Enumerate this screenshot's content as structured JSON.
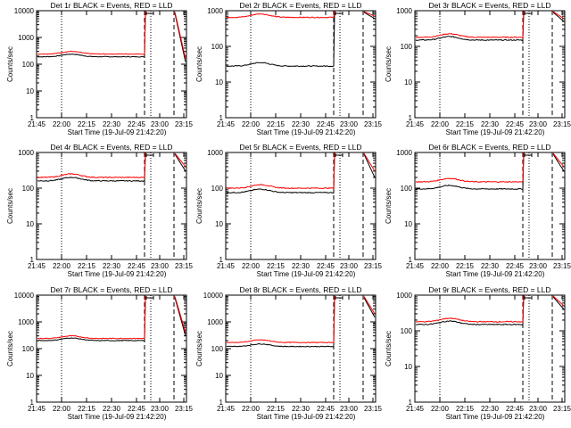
{
  "chart_data": [
    {
      "type": "line",
      "title": "Det 1r BLACK = Events, RED = LLD",
      "xlabel": "Start Time (19-Jul-09 21:42:20)",
      "ylabel": "Counts/sec",
      "yscale": "log",
      "ylim": [
        1,
        10000
      ],
      "xticks": [
        "21:45",
        "22:00",
        "22:15",
        "22:30",
        "22:45",
        "23:00",
        "23:15"
      ],
      "yticks": [
        "1",
        "10",
        "100",
        "1000",
        "10000"
      ],
      "series": [
        {
          "color": "#000000",
          "base": 190,
          "spike": 8000,
          "tail": 120
        },
        {
          "color": "#ff0000",
          "base": 240,
          "spike": 9000,
          "tail": 160
        }
      ]
    },
    {
      "type": "line",
      "title": "Det 2r BLACK = Events, RED = LLD",
      "xlabel": "Start Time (19-Jul-09 21:42:20)",
      "ylabel": "Counts/sec",
      "yscale": "log",
      "ylim": [
        1,
        1000
      ],
      "xticks": [
        "21:45",
        "22:00",
        "22:15",
        "22:30",
        "22:45",
        "23:00",
        "23:15"
      ],
      "yticks": [
        "1",
        "10",
        "100",
        "1000"
      ],
      "series": [
        {
          "color": "#000000",
          "base": 28,
          "spike": 900,
          "tail": 600
        },
        {
          "color": "#ff0000",
          "base": 650,
          "spike": 950,
          "tail": 700
        }
      ]
    },
    {
      "type": "line",
      "title": "Det 3r BLACK = Events, RED = LLD",
      "xlabel": "Start Time (19-Jul-09 21:42:20)",
      "ylabel": "Counts/sec",
      "yscale": "log",
      "ylim": [
        1,
        1000
      ],
      "xticks": [
        "21:45",
        "22:00",
        "22:15",
        "22:30",
        "22:45",
        "23:00",
        "23:15"
      ],
      "yticks": [
        "1",
        "10",
        "100",
        "1000"
      ],
      "series": [
        {
          "color": "#000000",
          "base": 150,
          "spike": 900,
          "tail": 500
        },
        {
          "color": "#ff0000",
          "base": 180,
          "spike": 950,
          "tail": 600
        }
      ]
    },
    {
      "type": "line",
      "title": "Det 4r BLACK = Events, RED = LLD",
      "xlabel": "Start Time (19-Jul-09 21:42:20)",
      "ylabel": "Counts/sec",
      "yscale": "log",
      "ylim": [
        1,
        1000
      ],
      "xticks": [
        "21:45",
        "22:00",
        "22:15",
        "22:30",
        "22:45",
        "23:00",
        "23:15"
      ],
      "yticks": [
        "1",
        "10",
        "100",
        "1000"
      ],
      "series": [
        {
          "color": "#000000",
          "base": 160,
          "spike": 900,
          "tail": 300
        },
        {
          "color": "#ff0000",
          "base": 200,
          "spike": 950,
          "tail": 400
        }
      ]
    },
    {
      "type": "line",
      "title": "Det 5r BLACK = Events, RED = LLD",
      "xlabel": "Start Time (19-Jul-09 21:42:20)",
      "ylabel": "Counts/sec",
      "yscale": "log",
      "ylim": [
        1,
        1000
      ],
      "xticks": [
        "21:45",
        "22:00",
        "22:15",
        "22:30",
        "22:45",
        "23:00",
        "23:15"
      ],
      "yticks": [
        "1",
        "10",
        "100",
        "1000"
      ],
      "series": [
        {
          "color": "#000000",
          "base": 75,
          "spike": 900,
          "tail": 200
        },
        {
          "color": "#ff0000",
          "base": 100,
          "spike": 950,
          "tail": 300
        }
      ]
    },
    {
      "type": "line",
      "title": "Det 6r BLACK = Events, RED = LLD",
      "xlabel": "Start Time (19-Jul-09 21:42:20)",
      "ylabel": "Counts/sec",
      "yscale": "log",
      "ylim": [
        1,
        1000
      ],
      "xticks": [
        "21:45",
        "22:00",
        "22:15",
        "22:30",
        "22:45",
        "23:00",
        "23:15"
      ],
      "yticks": [
        "1",
        "10",
        "100",
        "1000"
      ],
      "series": [
        {
          "color": "#000000",
          "base": 95,
          "spike": 900,
          "tail": 300
        },
        {
          "color": "#ff0000",
          "base": 150,
          "spike": 950,
          "tail": 400
        }
      ]
    },
    {
      "type": "line",
      "title": "Det 7r BLACK = Events, RED = LLD",
      "xlabel": "Start Time (19-Jul-09 21:42:20)",
      "ylabel": "Counts/sec",
      "yscale": "log",
      "ylim": [
        1,
        10000
      ],
      "xticks": [
        "21:45",
        "22:00",
        "22:15",
        "22:30",
        "22:45",
        "23:00",
        "23:15"
      ],
      "yticks": [
        "1",
        "10",
        "100",
        "1000",
        "10000"
      ],
      "series": [
        {
          "color": "#000000",
          "base": 200,
          "spike": 8000,
          "tail": 300
        },
        {
          "color": "#ff0000",
          "base": 240,
          "spike": 9000,
          "tail": 400
        }
      ]
    },
    {
      "type": "line",
      "title": "Det 8r BLACK = Events, RED = LLD",
      "xlabel": "Start Time (19-Jul-09 21:42:20)",
      "ylabel": "Counts/sec",
      "yscale": "log",
      "ylim": [
        1,
        10000
      ],
      "xticks": [
        "21:45",
        "22:00",
        "22:15",
        "22:30",
        "22:45",
        "23:00",
        "23:15"
      ],
      "yticks": [
        "1",
        "10",
        "100",
        "1000",
        "10000"
      ],
      "series": [
        {
          "color": "#000000",
          "base": 120,
          "spike": 8000,
          "tail": 1500
        },
        {
          "color": "#ff0000",
          "base": 170,
          "spike": 9000,
          "tail": 2000
        }
      ]
    },
    {
      "type": "line",
      "title": "Det 9r BLACK = Events, RED = LLD",
      "xlabel": "Start Time (19-Jul-09 21:42:20)",
      "ylabel": "Counts/sec",
      "yscale": "log",
      "ylim": [
        1,
        1000
      ],
      "xticks": [
        "21:45",
        "22:00",
        "22:15",
        "22:30",
        "22:45",
        "23:00",
        "23:15"
      ],
      "yticks": [
        "1",
        "10",
        "100",
        "1000"
      ],
      "series": [
        {
          "color": "#000000",
          "base": 150,
          "spike": 900,
          "tail": 400
        },
        {
          "color": "#ff0000",
          "base": 180,
          "spike": 950,
          "tail": 500
        }
      ]
    }
  ]
}
